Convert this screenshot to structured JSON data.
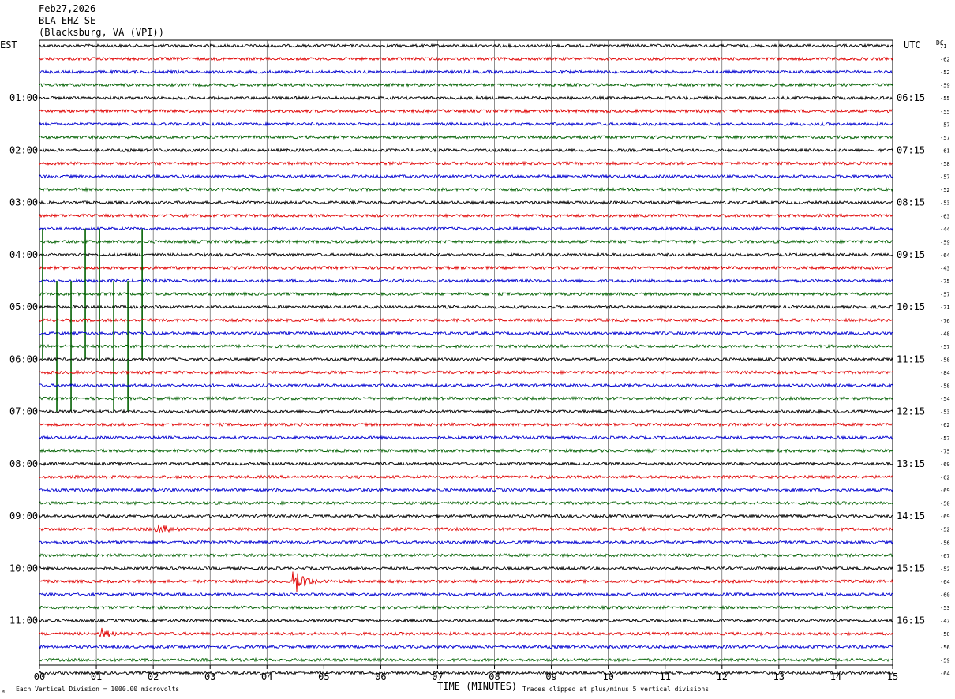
{
  "header": {
    "date": "Feb27,2026",
    "station": "BLA EHZ SE --",
    "location": "(Blacksburg, VA (VPI))"
  },
  "axis_labels": {
    "left_zone": "EST",
    "right_zone": "UTC",
    "dc_header": "DC",
    "x_label": "TIME (MINUTES)"
  },
  "footer": {
    "scale_note": "Each Vertical Division = 1000.00 microvolts",
    "clip_note": "Traces clipped at plus/minus 5 vertical divisions",
    "corner_mark": "M"
  },
  "colors": {
    "trace_cycle": [
      "#000000",
      "#e00000",
      "#0000d0",
      "#006000"
    ],
    "grid": "#000000",
    "background": "#ffffff"
  },
  "chart_data": {
    "type": "line",
    "title": "BLA EHZ SE --",
    "xlabel": "TIME (MINUTES)",
    "ylabel": "",
    "xlim": [
      0,
      15
    ],
    "x_ticks": [
      "00",
      "01",
      "02",
      "03",
      "04",
      "05",
      "06",
      "07",
      "08",
      "09",
      "10",
      "11",
      "12",
      "13",
      "14",
      "15"
    ],
    "trace_minutes": 15,
    "left_hour_labels": [
      "01:00",
      "02:00",
      "03:00",
      "04:00",
      "05:00",
      "06:00",
      "07:00",
      "08:00",
      "09:00",
      "10:00",
      "11:00"
    ],
    "right_hour_labels": [
      "06:15",
      "07:15",
      "08:15",
      "09:15",
      "10:15",
      "11:15",
      "12:15",
      "13:15",
      "14:15",
      "15:15",
      "16:15"
    ],
    "dc_offsets": [
      71,
      -62,
      -52,
      -59,
      -55,
      -55,
      -57,
      -57,
      -61,
      -58,
      -57,
      -52,
      -53,
      -63,
      -44,
      -59,
      -64,
      -43,
      -75,
      -57,
      -71,
      -76,
      -48,
      -57,
      -58,
      -84,
      -58,
      -54,
      -53,
      -62,
      -57,
      -75,
      -69,
      -62,
      -69,
      -50,
      -69,
      -52,
      -56,
      -67,
      -52,
      -64,
      -60,
      -53,
      -47,
      -50,
      -56,
      -59,
      -64
    ],
    "events": [
      {
        "trace": 19,
        "minute": 0.0,
        "amplitude_div": 5,
        "type": "spike"
      },
      {
        "trace": 19,
        "minute": 0.75,
        "amplitude_div": 5,
        "type": "spike"
      },
      {
        "trace": 19,
        "minute": 1.0,
        "amplitude_div": 5,
        "type": "spike"
      },
      {
        "trace": 19,
        "minute": 1.75,
        "amplitude_div": 5,
        "type": "spike"
      },
      {
        "trace": 23,
        "minute": 0.25,
        "amplitude_div": 5,
        "type": "spike"
      },
      {
        "trace": 23,
        "minute": 0.5,
        "amplitude_div": 5,
        "type": "spike"
      },
      {
        "trace": 23,
        "minute": 1.25,
        "amplitude_div": 5,
        "type": "spike"
      },
      {
        "trace": 23,
        "minute": 1.5,
        "amplitude_div": 5,
        "type": "spike"
      },
      {
        "trace": 41,
        "minute": 4.5,
        "amplitude_div": 1.3,
        "type": "burst"
      },
      {
        "trace": 45,
        "minute": 1.1,
        "amplitude_div": 0.5,
        "type": "burst"
      },
      {
        "trace": 37,
        "minute": 2.1,
        "amplitude_div": 0.5,
        "type": "burst"
      }
    ],
    "grid": true,
    "legend": "none"
  }
}
